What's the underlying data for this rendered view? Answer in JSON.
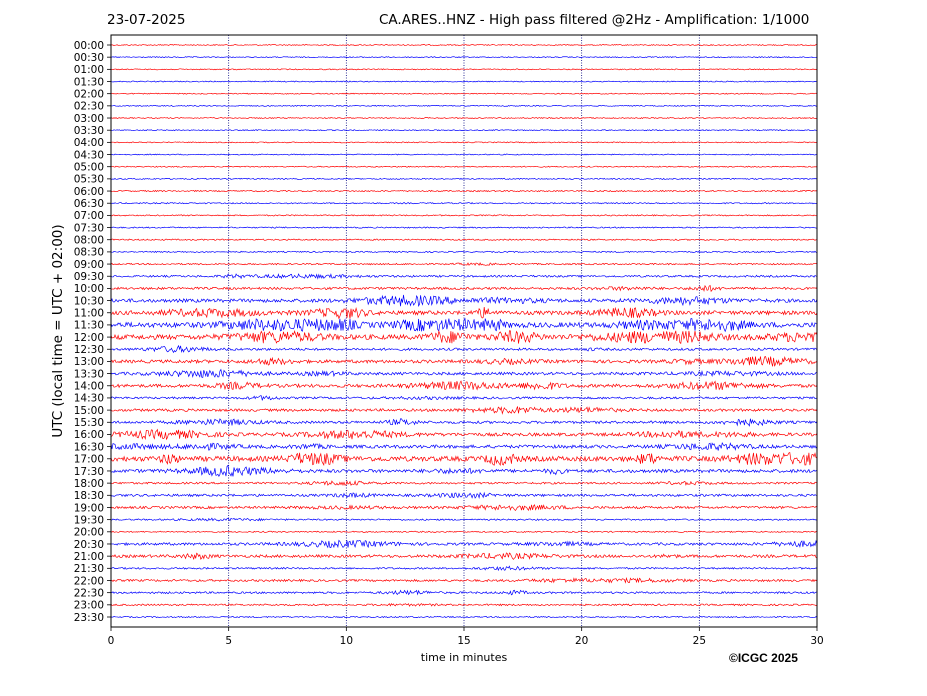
{
  "header": {
    "date": "23-07-2025",
    "title": "CA.ARES..HNZ - High pass filtered @2Hz - Amplification: 1/1000"
  },
  "copyright": "©ICGC 2025",
  "colors": {
    "odd_row": "#ff0000",
    "even_row": "#0000ff",
    "grid": "#000080"
  },
  "chart_data": {
    "type": "line",
    "xlabel": "time in minutes",
    "ylabel": "UTC (local time = UTC + 02:00)",
    "xlim": [
      0,
      30
    ],
    "x_ticks": [
      0,
      5,
      10,
      15,
      20,
      25,
      30
    ],
    "rows": [
      {
        "label": "00:00",
        "activity": 0.05
      },
      {
        "label": "00:30",
        "activity": 0.05
      },
      {
        "label": "01:00",
        "activity": 0.06
      },
      {
        "label": "01:30",
        "activity": 0.05
      },
      {
        "label": "02:00",
        "activity": 0.05
      },
      {
        "label": "02:30",
        "activity": 0.05
      },
      {
        "label": "03:00",
        "activity": 0.05
      },
      {
        "label": "03:30",
        "activity": 0.05
      },
      {
        "label": "04:00",
        "activity": 0.05
      },
      {
        "label": "04:30",
        "activity": 0.05
      },
      {
        "label": "05:00",
        "activity": 0.06
      },
      {
        "label": "05:30",
        "activity": 0.08
      },
      {
        "label": "06:00",
        "activity": 0.12
      },
      {
        "label": "06:30",
        "activity": 0.1
      },
      {
        "label": "07:00",
        "activity": 0.1
      },
      {
        "label": "07:30",
        "activity": 0.1
      },
      {
        "label": "08:00",
        "activity": 0.12
      },
      {
        "label": "08:30",
        "activity": 0.1
      },
      {
        "label": "09:00",
        "activity": 0.15
      },
      {
        "label": "09:30",
        "activity": 0.25
      },
      {
        "label": "10:00",
        "activity": 0.35
      },
      {
        "label": "10:30",
        "activity": 0.6
      },
      {
        "label": "11:00",
        "activity": 0.7
      },
      {
        "label": "11:30",
        "activity": 0.95
      },
      {
        "label": "12:00",
        "activity": 0.9
      },
      {
        "label": "12:30",
        "activity": 0.35
      },
      {
        "label": "13:00",
        "activity": 0.55
      },
      {
        "label": "13:30",
        "activity": 0.45
      },
      {
        "label": "14:00",
        "activity": 0.55
      },
      {
        "label": "14:30",
        "activity": 0.3
      },
      {
        "label": "15:00",
        "activity": 0.4
      },
      {
        "label": "15:30",
        "activity": 0.4
      },
      {
        "label": "16:00",
        "activity": 0.55
      },
      {
        "label": "16:30",
        "activity": 0.55
      },
      {
        "label": "17:00",
        "activity": 0.95
      },
      {
        "label": "17:30",
        "activity": 0.55
      },
      {
        "label": "18:00",
        "activity": 0.25
      },
      {
        "label": "18:30",
        "activity": 0.35
      },
      {
        "label": "19:00",
        "activity": 0.35
      },
      {
        "label": "19:30",
        "activity": 0.15
      },
      {
        "label": "20:00",
        "activity": 0.1
      },
      {
        "label": "20:30",
        "activity": 0.4
      },
      {
        "label": "21:00",
        "activity": 0.45
      },
      {
        "label": "21:30",
        "activity": 0.2
      },
      {
        "label": "22:00",
        "activity": 0.3
      },
      {
        "label": "22:30",
        "activity": 0.25
      },
      {
        "label": "23:00",
        "activity": 0.2
      },
      {
        "label": "23:30",
        "activity": 0.1
      }
    ]
  }
}
